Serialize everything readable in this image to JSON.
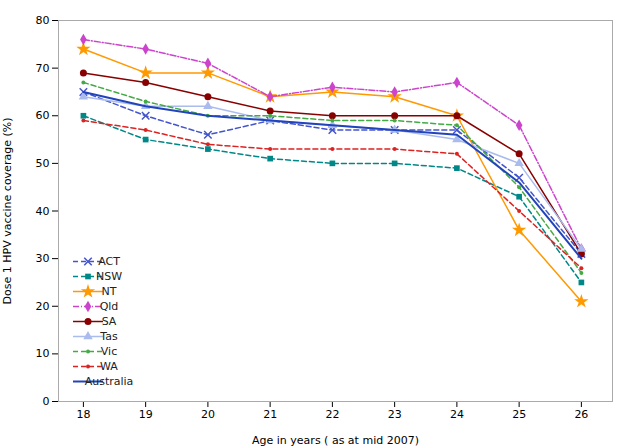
{
  "chart_data": {
    "type": "line",
    "x": [
      18,
      19,
      20,
      21,
      22,
      23,
      24,
      25,
      26
    ],
    "series": [
      {
        "name": "ACT",
        "color": "#4455cc",
        "values": [
          65,
          60,
          56,
          59,
          57,
          57,
          57,
          47,
          31
        ],
        "marker": "x",
        "line_style": "dashed"
      },
      {
        "name": "NSW",
        "color": "#008888",
        "values": [
          60,
          55,
          53,
          51,
          50,
          50,
          49,
          43,
          25
        ],
        "marker": "square",
        "line_style": "dashed"
      },
      {
        "name": "NT",
        "color": "#ff9900",
        "values": [
          74,
          69,
          69,
          64,
          65,
          64,
          60,
          36,
          21
        ],
        "marker": "star",
        "line_style": "solid"
      },
      {
        "name": "Qld",
        "color": "#cc44cc",
        "values": [
          76,
          74,
          71,
          64,
          66,
          65,
          67,
          58,
          32
        ],
        "marker": "diamond",
        "line_style": "dashdot"
      },
      {
        "name": "SA",
        "color": "#880000",
        "values": [
          69,
          67,
          64,
          61,
          60,
          60,
          60,
          52,
          31
        ],
        "marker": "circle",
        "line_style": "solid"
      },
      {
        "name": "Tas",
        "color": "#aabbee",
        "values": [
          64,
          62,
          62,
          59,
          58,
          57,
          55,
          50,
          32
        ],
        "marker": "triangle",
        "line_style": "solid"
      },
      {
        "name": "Vic",
        "color": "#44aa44",
        "values": [
          67,
          63,
          60,
          60,
          59,
          59,
          58,
          45,
          27
        ],
        "marker": "point",
        "line_style": "dashed"
      },
      {
        "name": "WA",
        "color": "#dd2222",
        "values": [
          59,
          57,
          54,
          53,
          53,
          53,
          52,
          40,
          28
        ],
        "marker": "point",
        "line_style": "dashed"
      },
      {
        "name": "Australia",
        "color": "#2244bb",
        "values": [
          65,
          62,
          60,
          59,
          58,
          57,
          56,
          46,
          30
        ],
        "line_style": "solid"
      }
    ],
    "xlabel": "Age in years ( as at mid 2007)",
    "ylabel": "Dose 1 HPV vaccine coverage (%)",
    "xlim": [
      17.6,
      26.5
    ],
    "ylim": [
      0,
      80
    ],
    "xticks": [
      18,
      19,
      20,
      21,
      22,
      23,
      24,
      25,
      26
    ],
    "yticks": [
      0,
      10,
      20,
      30,
      40,
      50,
      60,
      70,
      80
    ],
    "grid": false,
    "legend": "lower left"
  }
}
